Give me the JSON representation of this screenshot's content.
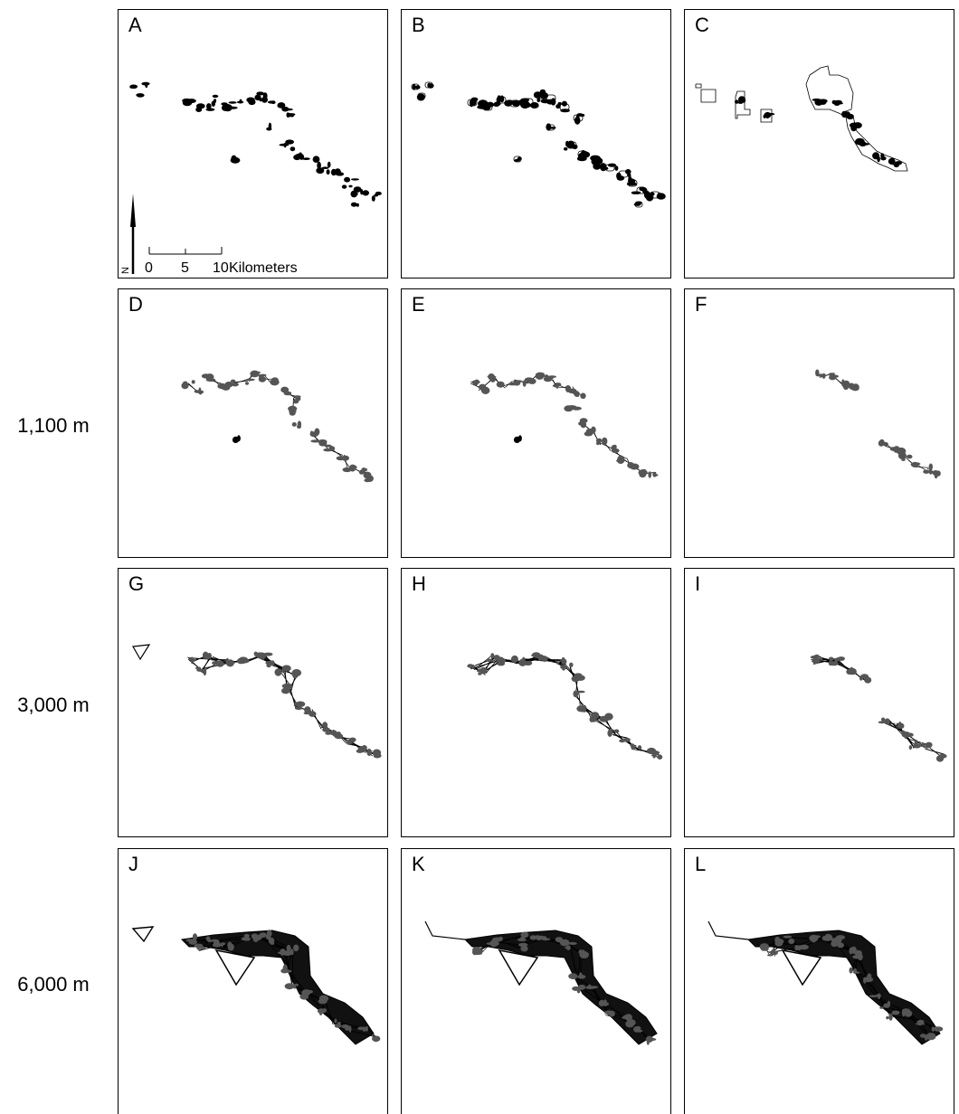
{
  "figure": {
    "panels": [
      {
        "id": "A",
        "label": "A",
        "kind": "patches"
      },
      {
        "id": "B",
        "label": "B",
        "kind": "buffered"
      },
      {
        "id": "C",
        "label": "C",
        "kind": "boundaries"
      },
      {
        "id": "D",
        "label": "D",
        "kind": "network-1100"
      },
      {
        "id": "E",
        "label": "E",
        "kind": "network-1100"
      },
      {
        "id": "F",
        "label": "F",
        "kind": "network-1100-sparse"
      },
      {
        "id": "G",
        "label": "G",
        "kind": "network-3000"
      },
      {
        "id": "H",
        "label": "H",
        "kind": "network-3000"
      },
      {
        "id": "I",
        "label": "I",
        "kind": "network-3000-sparse"
      },
      {
        "id": "J",
        "label": "J",
        "kind": "network-6000"
      },
      {
        "id": "K",
        "label": "K",
        "kind": "network-6000"
      },
      {
        "id": "L",
        "label": "L",
        "kind": "network-6000"
      }
    ],
    "row_labels": [
      {
        "row": 2,
        "text": "1,100 m"
      },
      {
        "row": 3,
        "text": "3,000 m"
      },
      {
        "row": 4,
        "text": "6,000 m"
      }
    ],
    "scale_bar": {
      "tick_labels": [
        "0",
        "5",
        "10"
      ],
      "unit": "Kilometers",
      "north_label": "N"
    }
  }
}
